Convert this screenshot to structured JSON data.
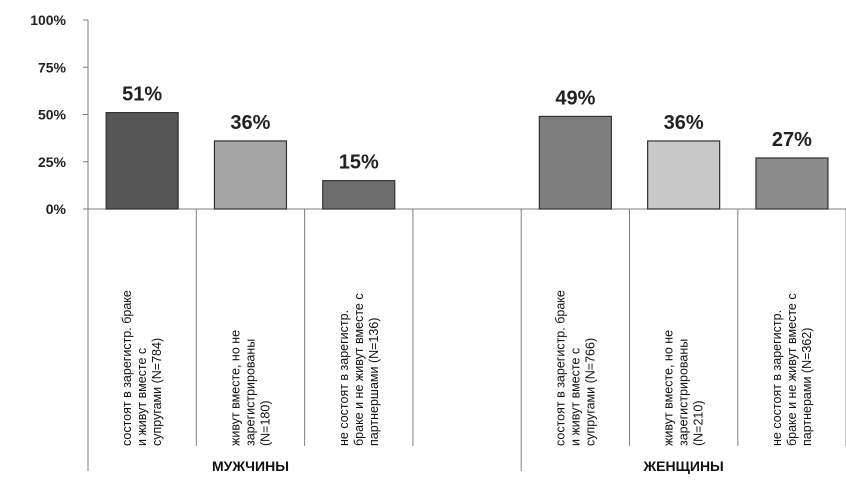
{
  "chart_data": {
    "type": "bar",
    "ylim": [
      0,
      100
    ],
    "yticks": [
      "100%",
      "75%",
      "50%",
      "25%",
      "0%"
    ],
    "grid": false,
    "groups": [
      {
        "name": "МУЖЧИНЫ",
        "bars": [
          {
            "value": 51,
            "label": "51%",
            "color": "#555555",
            "category": [
              "состоят в зарегистр. браке",
              "и живут вместе с",
              "супругами (N=784)"
            ]
          },
          {
            "value": 36,
            "label": "36%",
            "color": "#a6a6a6",
            "category": [
              "живут вместе, но не",
              "зарегистрированы",
              "(N=180)"
            ]
          },
          {
            "value": 15,
            "label": "15%",
            "color": "#6e6e6e",
            "category": [
              "не состоят в зарегистр.",
              "браке и не живут вместе с",
              "партнершами (N=136)"
            ]
          }
        ]
      },
      {
        "name": "ЖЕНЩИНЫ",
        "bars": [
          {
            "value": 49,
            "label": "49%",
            "color": "#7f7f7f",
            "category": [
              "состоят в зарегистр. браке",
              "и живут вместе с",
              "супругами (N=766)"
            ]
          },
          {
            "value": 36,
            "label": "36%",
            "color": "#c8c8c8",
            "category": [
              "живут вместе, но не",
              "зарегистрированы",
              "(N=210)"
            ]
          },
          {
            "value": 27,
            "label": "27%",
            "color": "#8c8c8c",
            "category": [
              "не состоят в зарегистр.",
              "браке и не живут вместе с",
              "партнерами (N=362)"
            ]
          }
        ]
      }
    ]
  }
}
